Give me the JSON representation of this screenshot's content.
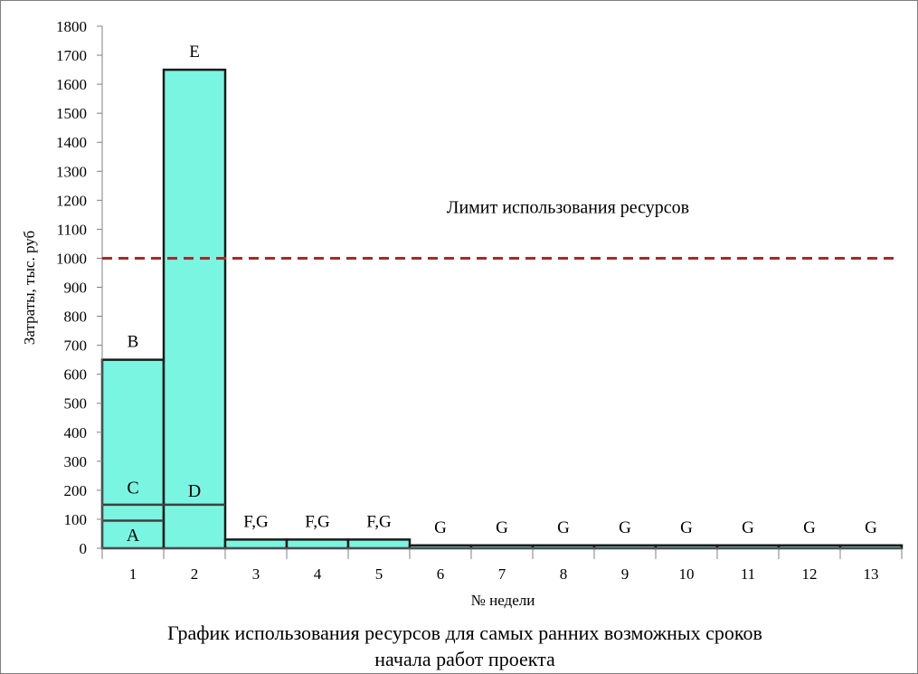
{
  "chart_data": {
    "type": "bar",
    "title": "График использования ресурсов для самых ранних возможных сроков начала работ проекта",
    "title_lines": [
      "График использования ресурсов для самых ранних возможных сроков",
      "начала работ проекта"
    ],
    "xlabel": "№ недели",
    "ylabel": "Затраты, тыс. руб",
    "ylim": [
      0,
      1800
    ],
    "ytick_step": 100,
    "yticks": [
      "0",
      "100",
      "200",
      "300",
      "400",
      "500",
      "600",
      "700",
      "800",
      "900",
      "1000",
      "1100",
      "1200",
      "1300",
      "1400",
      "1500",
      "1600",
      "1700",
      "1800"
    ],
    "categories": [
      "1",
      "2",
      "3",
      "4",
      "5",
      "6",
      "7",
      "8",
      "9",
      "10",
      "11",
      "12",
      "13"
    ],
    "values": [
      650,
      1650,
      30,
      30,
      30,
      10,
      10,
      10,
      10,
      10,
      10,
      10,
      10
    ],
    "bar_color": "#7af5e1",
    "bar_labels": [
      "B",
      "E",
      "F,G",
      "F,G",
      "F,G",
      "G",
      "G",
      "G",
      "G",
      "G",
      "G",
      "G",
      "G"
    ],
    "segments": [
      {
        "category": "1",
        "boundaries": [
          95,
          150
        ],
        "labels": [
          {
            "text": "A",
            "y": 47
          },
          {
            "text": "C",
            "y": 210
          }
        ]
      },
      {
        "category": "2",
        "boundaries": [
          150
        ],
        "labels": [
          {
            "text": "D",
            "y": 200
          }
        ]
      }
    ],
    "limit": {
      "value": 1000,
      "label": "Лимит использования ресурсов",
      "color": "#a52a2a",
      "style": "dashed"
    },
    "grid": false,
    "legend": "none"
  }
}
